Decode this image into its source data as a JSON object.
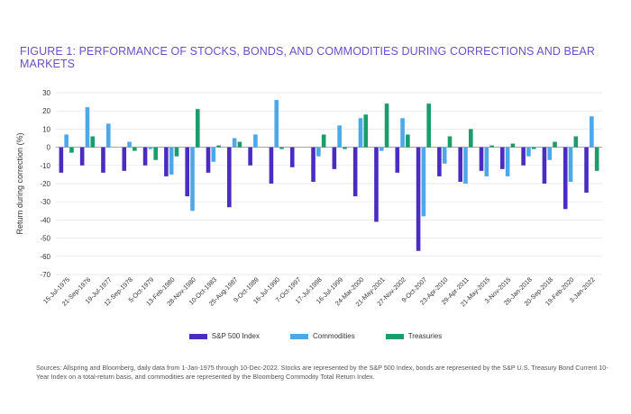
{
  "chart_data": {
    "type": "bar",
    "title": "FIGURE 1: PERFORMANCE OF STOCKS, BONDS, AND COMMODITIES DURING CORRECTIONS AND BEAR MARKETS",
    "ylabel": "Return during correction (%)",
    "xlabel": "",
    "ylim": [
      -70,
      30
    ],
    "yticks": [
      30,
      20,
      10,
      0,
      -10,
      -20,
      -30,
      -40,
      -50,
      -60,
      -70
    ],
    "legend_position": "bottom-center",
    "colors": {
      "sp500": "#4a2dc0",
      "commodities": "#4da8e8",
      "treasuries": "#1a9c6b"
    },
    "categories": [
      "15-Jul-1975",
      "21-Sep-1976",
      "19-Jul-1977",
      "12-Sep-1978",
      "5-Oct-1979",
      "13-Feb-1980",
      "28-Nov-1980",
      "10-Oct-1983",
      "25-Aug-1987",
      "9-Oct-1989",
      "16-Jul-1990",
      "7-Oct-1997",
      "17-Jul-1998",
      "16-Jul-1999",
      "24-Mar-2000",
      "21-May-2001",
      "27-Nov-2002",
      "9-Oct-2007",
      "23-Apr-2010",
      "29-Apr-2011",
      "21-May-2015",
      "3-Nov-2015",
      "26-Jan-2018",
      "20-Sep-2018",
      "19-Feb-2020",
      "3-Jan-2022"
    ],
    "series": [
      {
        "name": "S&P 500 Index",
        "values": [
          -14,
          -10,
          -14,
          -13,
          -10,
          -16,
          -27,
          -14,
          -33,
          -10,
          -20,
          -11,
          -19,
          -12,
          -27,
          -41,
          -14,
          -57,
          -16,
          -19,
          -13,
          -12,
          -10,
          -20,
          -34,
          -25
        ]
      },
      {
        "name": "Commodities",
        "values": [
          7,
          22,
          13,
          3,
          -1,
          -15,
          -35,
          -8,
          5,
          7,
          26,
          0,
          -5,
          12,
          16,
          -2,
          16,
          -38,
          -9,
          -20,
          -16,
          -16,
          -5,
          -7,
          -19,
          17
        ]
      },
      {
        "name": "Treasuries",
        "values": [
          -3,
          6,
          0,
          -2,
          -7,
          -5,
          21,
          1,
          3,
          0,
          -1,
          0,
          7,
          -1,
          18,
          24,
          7,
          24,
          6,
          10,
          1,
          2,
          -1,
          3,
          6,
          -13
        ]
      }
    ]
  },
  "legend": {
    "items": [
      {
        "label": "S&P 500 Index"
      },
      {
        "label": "Commodities"
      },
      {
        "label": "Treasuries"
      }
    ]
  },
  "sources_text": "Sources: Allspring and Bloomberg, daily data from 1-Jan-1975 through 10-Dec-2022. Stocks are represented by the S&P 500 Index, bonds are represented by the S&P U.S. Treasury Bond Current 10-Year Index on a total-return basis, and commodities are represented by the Bloomberg Commodity Total Return Index."
}
